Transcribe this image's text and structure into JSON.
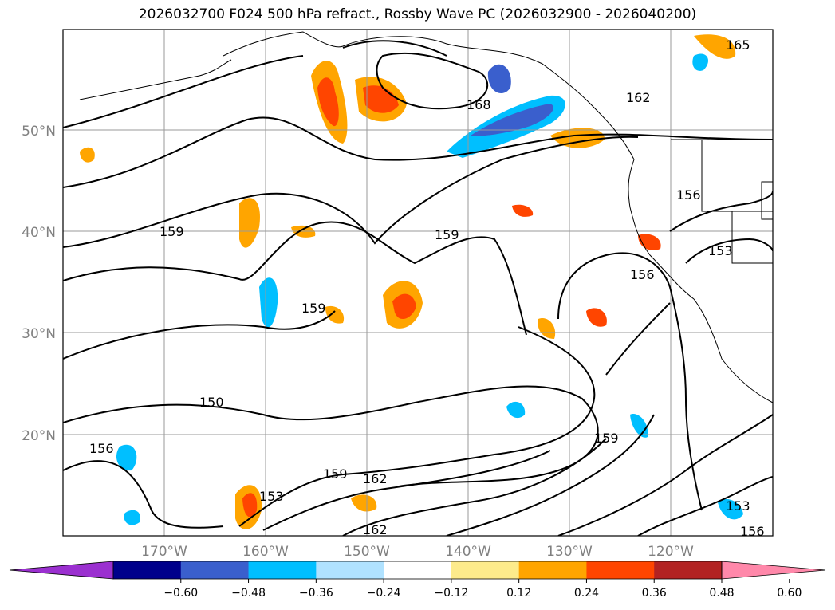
{
  "title": "2026032700 F024 500 hPa refract., Rossby Wave PC (2026032900 - 2026040200)",
  "map": {
    "lon_range": [
      -180,
      -110
    ],
    "lat_range": [
      10,
      60
    ],
    "lat_ticks": [
      {
        "value": 20,
        "label": "20°N"
      },
      {
        "value": 30,
        "label": "30°N"
      },
      {
        "value": 40,
        "label": "40°N"
      },
      {
        "value": 50,
        "label": "50°N"
      }
    ],
    "lon_ticks": [
      {
        "value": -170,
        "label": "170°W"
      },
      {
        "value": -160,
        "label": "160°W"
      },
      {
        "value": -150,
        "label": "150°W"
      },
      {
        "value": -140,
        "label": "140°W"
      },
      {
        "value": -130,
        "label": "130°W"
      },
      {
        "value": -120,
        "label": "120°W"
      }
    ],
    "gridlines": true,
    "contour_labels": [
      "150",
      "153",
      "156",
      "159",
      "162",
      "165",
      "168"
    ]
  },
  "colorbar": {
    "extend": "both",
    "colors": [
      "#9b30d0",
      "#00008b",
      "#3a5fcd",
      "#00bfff",
      "#b0e2ff",
      "#ffffff",
      "#fdeb8b",
      "#ffa500",
      "#ff4500",
      "#b22222",
      "#ff88aa"
    ],
    "tick_labels": [
      "−0.60",
      "−0.48",
      "−0.36",
      "−0.24",
      "−0.12",
      "0.12",
      "0.24",
      "0.36",
      "0.48",
      "0.60"
    ]
  }
}
